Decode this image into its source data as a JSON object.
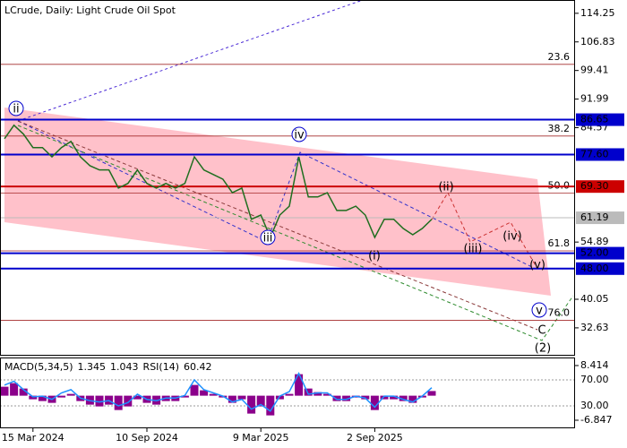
{
  "chart_data": [
    {
      "type": "line",
      "title": "LCrude, Daily:  Light Crude Oil Spot",
      "categories": [
        null,
        null,
        null,
        "15 Mar 2024",
        null,
        null,
        null,
        null,
        null,
        null,
        null,
        null,
        null,
        null,
        null,
        "10 Sep 2024",
        null,
        null,
        null,
        null,
        null,
        null,
        null,
        null,
        null,
        null,
        null,
        "9 Mar 2025",
        null,
        null,
        null,
        null,
        null,
        null,
        null,
        null,
        null,
        null,
        null,
        "2 Sep 2025",
        null,
        null,
        null,
        null,
        null,
        null
      ],
      "series": [
        {
          "color": "#1f6e1f",
          "values": [
            81.7,
            85.2,
            82.9,
            79.4,
            79.4,
            77.0,
            79.4,
            81.0,
            77.0,
            74.7,
            73.6,
            73.6,
            68.9,
            70.1,
            73.6,
            70.1,
            68.9,
            70.1,
            68.9,
            70.1,
            77.0,
            73.6,
            72.4,
            71.2,
            67.7,
            68.9,
            60.8,
            61.9,
            56.1,
            61.9,
            64.2,
            77.0,
            66.6,
            66.6,
            67.7,
            63.1,
            63.1,
            64.2,
            61.9,
            56.1,
            60.8,
            60.8,
            58.4,
            56.8,
            58.4,
            60.8
          ]
        }
      ],
      "ylim": [
        25.4,
        117.7
      ],
      "yticks": [
        114.25,
        106.83,
        99.41,
        91.99,
        84.57,
        54.89,
        40.05,
        32.63
      ],
      "levels": [
        {
          "value": 86.65,
          "color": "#0000cc"
        },
        {
          "value": {
            "value": 77.6,
            "label": "77.60"
          },
          "color": "#0000cc"
        },
        {
          "value": {
            "value": 69.3,
            "label": "69.30"
          },
          "color": "#cc0000"
        },
        {
          "value": 61.19,
          "color": "#bbbbbb"
        },
        {
          "value": {
            "value": 52,
            "label": "52.00"
          },
          "color": "#0000cc"
        },
        {
          "value": {
            "value": 48,
            "label": "48.00"
          },
          "color": "#0000cc"
        }
      ],
      "fib": [
        {
          "ratio": 23.6,
          "price": 101.0
        },
        {
          "ratio": 38.2,
          "price": 82.4
        },
        {
          "ratio": {
            "value": 50,
            "label": "50.0"
          },
          "price": 67.6
        },
        {
          "ratio": 61.8,
          "price": 52.6
        },
        {
          "ratio": {
            "value": 76,
            "label": "76.0"
          },
          "price": 34.6
        }
      ],
      "waves": [
        "ii",
        "iv",
        "iii",
        "v",
        "(i)",
        "(ii)",
        "(iii)",
        "(iv)",
        "(v)",
        "C",
        "(2)"
      ]
    },
    {
      "type": "bar",
      "macd_label": "MACD(5,34,5)",
      "macd_readings": [
        1.345,
        1.043
      ],
      "rsi_label": "RSI(14)",
      "rsi_reading": 60.42,
      "color": "#8b008b",
      "values": [
        2.5,
        3.5,
        2,
        -1,
        -1.5,
        -2,
        -0.5,
        0.5,
        -1.5,
        -2.5,
        -3,
        -2.5,
        -4,
        -3,
        -1,
        -2,
        -2.5,
        -1.5,
        -1.5,
        -0.5,
        3,
        1.5,
        0.5,
        -0.5,
        -2,
        -1,
        -5,
        -3,
        -5.5,
        -1,
        0.5,
        6,
        2,
        1,
        0.5,
        -1.5,
        -1.5,
        -0.5,
        -1,
        -4,
        -1,
        -1,
        -1.5,
        -2,
        -0.5,
        1.3
      ],
      "ylim": [
        -9.1,
        10.41
      ],
      "yticks": [
        8.414,
        -6.847
      ],
      "y2lim": [
        -4.5,
        103.1
      ],
      "y2ticks": [
        {
          "value": 70,
          "label": "70.00"
        },
        {
          "value": 30,
          "label": "30.00"
        }
      ],
      "series": [
        {
          "color": "#1e90ff",
          "axis": "y2",
          "values": [
            62,
            68,
            55,
            44,
            45,
            40,
            50,
            55,
            42,
            38,
            36,
            38,
            30,
            35,
            48,
            40,
            38,
            42,
            42,
            46,
            70,
            55,
            50,
            45,
            36,
            40,
            25,
            32,
            22,
            45,
            52,
            80,
            48,
            50,
            50,
            40,
            40,
            45,
            42,
            28,
            45,
            45,
            40,
            36,
            45,
            58
          ]
        }
      ]
    }
  ]
}
